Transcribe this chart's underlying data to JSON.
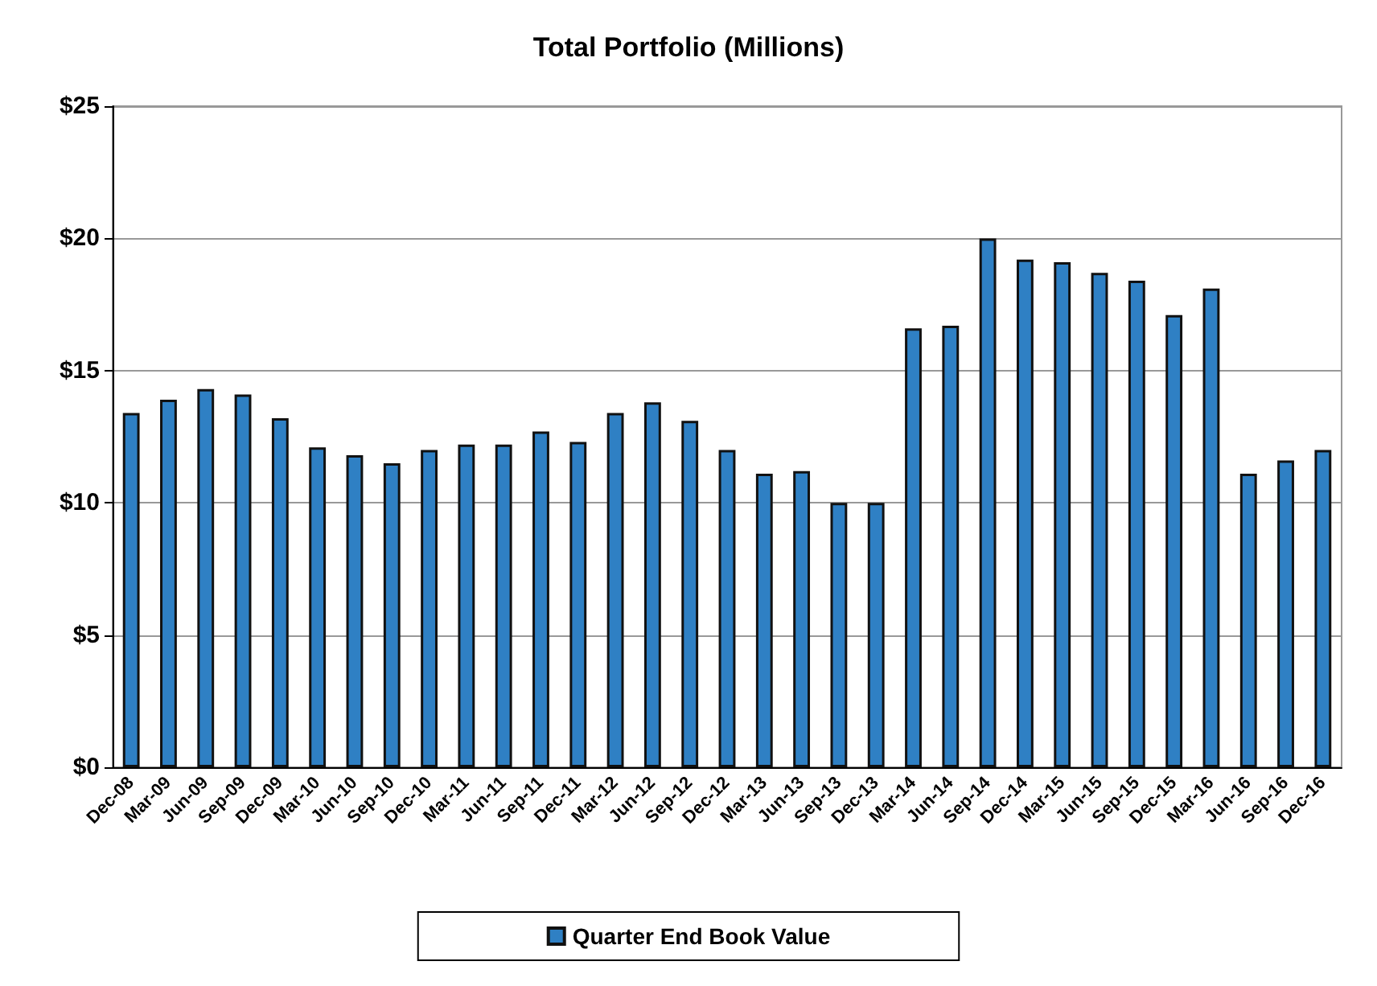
{
  "chart_data": {
    "type": "bar",
    "title": "Total Portfolio (Millions)",
    "categories": [
      "Dec-08",
      "Mar-09",
      "Jun-09",
      "Sep-09",
      "Dec-09",
      "Mar-10",
      "Jun-10",
      "Sep-10",
      "Dec-10",
      "Mar-11",
      "Jun-11",
      "Sep-11",
      "Dec-11",
      "Mar-12",
      "Jun-12",
      "Sep-12",
      "Dec-12",
      "Mar-13",
      "Jun-13",
      "Sep-13",
      "Dec-13",
      "Mar-14",
      "Jun-14",
      "Sep-14",
      "Dec-14",
      "Mar-15",
      "Jun-15",
      "Sep-15",
      "Dec-15",
      "Mar-16",
      "Jun-16",
      "Sep-16",
      "Dec-16"
    ],
    "series": [
      {
        "name": "Quarter End Book Value",
        "color": "#2f80c4",
        "values": [
          13.4,
          13.9,
          14.3,
          14.1,
          13.2,
          12.1,
          11.8,
          11.5,
          12.0,
          12.2,
          12.2,
          12.7,
          12.3,
          13.4,
          13.8,
          13.1,
          12.0,
          11.1,
          11.2,
          10.0,
          10.0,
          16.6,
          16.7,
          20.0,
          19.2,
          19.1,
          18.7,
          18.4,
          17.1,
          18.1,
          11.1,
          11.6,
          12.0
        ]
      }
    ],
    "ylim": [
      0,
      25
    ],
    "yticks": [
      {
        "value": 0,
        "label": "$0"
      },
      {
        "value": 5,
        "label": "$5"
      },
      {
        "value": 10,
        "label": "$10"
      },
      {
        "value": 15,
        "label": "$15"
      },
      {
        "value": 20,
        "label": "$20"
      },
      {
        "value": 25,
        "label": "$25"
      }
    ],
    "grid": "y",
    "legend": "bottom"
  }
}
